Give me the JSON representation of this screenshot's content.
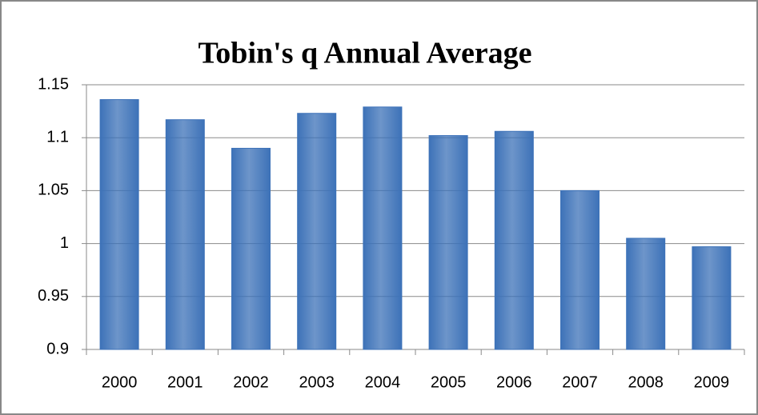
{
  "chart_data": {
    "type": "bar",
    "title": "Tobin's q Annual Average",
    "categories": [
      "2000",
      "2001",
      "2002",
      "2003",
      "2004",
      "2005",
      "2006",
      "2007",
      "2008",
      "2009"
    ],
    "values": [
      1.136,
      1.117,
      1.09,
      1.123,
      1.129,
      1.102,
      1.106,
      1.05,
      1.005,
      0.997
    ],
    "color": "#3d72b8",
    "ylim": [
      0.9,
      1.15
    ],
    "yticks": [
      0.9,
      0.95,
      1,
      1.05,
      1.1,
      1.15
    ],
    "grid": true
  }
}
